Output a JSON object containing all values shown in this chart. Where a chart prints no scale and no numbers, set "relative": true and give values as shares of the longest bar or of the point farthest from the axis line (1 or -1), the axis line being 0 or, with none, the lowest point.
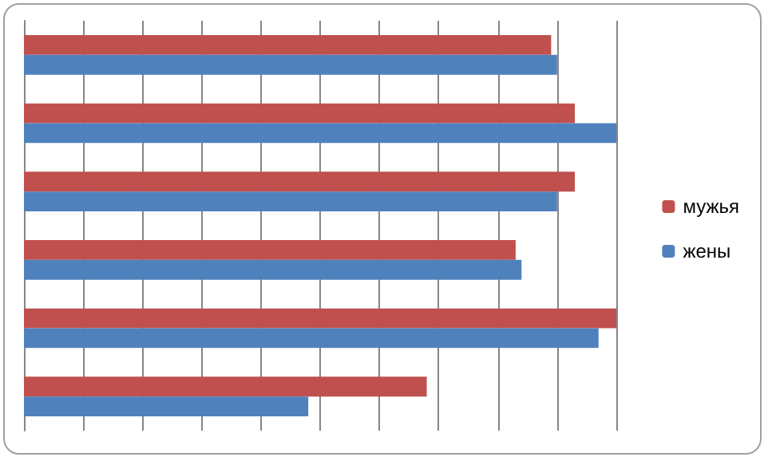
{
  "chart_data": {
    "type": "bar",
    "orientation": "horizontal",
    "relative": true,
    "grid": true,
    "legend": "right",
    "categories": [
      null,
      null,
      null,
      null,
      null,
      null
    ],
    "series": [
      {
        "name": "мужья",
        "color": "#c0504d",
        "values": [
          0.89,
          0.93,
          0.93,
          0.83,
          1.0,
          0.68
        ]
      },
      {
        "name": "жены",
        "color": "#4f81bd",
        "values": [
          0.9,
          1.0,
          0.9,
          0.84,
          0.97,
          0.48
        ]
      }
    ]
  }
}
